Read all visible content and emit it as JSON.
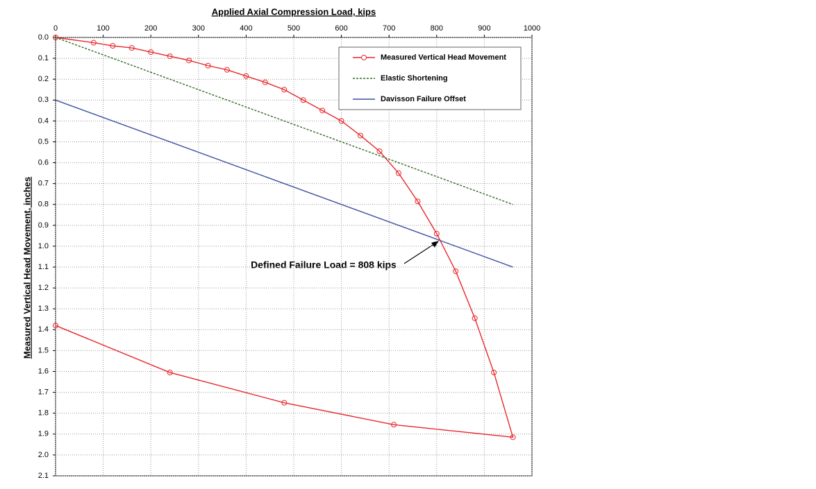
{
  "chart_data": {
    "type": "line",
    "title": "Applied Axial Compression Load, kips",
    "y_label": "Measured Vertical Head Movement, inches",
    "xlim": [
      0,
      1000
    ],
    "xticks": [
      0,
      100,
      200,
      300,
      400,
      500,
      600,
      700,
      800,
      900,
      1000
    ],
    "ylim": [
      0,
      2.1
    ],
    "yticks": [
      {
        "value": 0,
        "label": "0.0"
      },
      0.1,
      0.2,
      0.3,
      0.4,
      0.5,
      0.6,
      0.7,
      0.8,
      0.9,
      {
        "value": 1,
        "label": "1.0"
      },
      1.1,
      1.2,
      1.3,
      1.4,
      1.5,
      1.6,
      1.7,
      1.8,
      1.9,
      {
        "value": 2,
        "label": "2.0"
      },
      2.1
    ],
    "y_inverted": true,
    "x_axis_position": "top",
    "grid": true,
    "legend": "upper right",
    "series": [
      {
        "name": "Measured Vertical Head Movement",
        "color": "#e8262b",
        "markers": true,
        "dash": false,
        "x": [
          0,
          80,
          120,
          160,
          200,
          240,
          280,
          320,
          360,
          400,
          440,
          480,
          520,
          560,
          600,
          640,
          680,
          720,
          760,
          800,
          840,
          880,
          920,
          960,
          710,
          480,
          240,
          0
        ],
        "values": [
          0,
          0.025,
          0.04,
          0.05,
          0.07,
          0.09,
          0.11,
          0.135,
          0.155,
          0.185,
          0.215,
          0.25,
          0.3,
          0.35,
          0.4,
          0.47,
          0.545,
          0.65,
          0.785,
          0.94,
          1.12,
          1.345,
          1.605,
          1.915,
          1.855,
          1.75,
          1.605,
          1.38
        ]
      },
      {
        "name": "Elastic Shortening",
        "color": "#2d6a1f",
        "markers": false,
        "dash": true,
        "x": [
          0,
          960
        ],
        "values": [
          0,
          0.8
        ]
      },
      {
        "name": "Davisson Failure Offset",
        "color": "#3a4fa0",
        "markers": false,
        "dash": false,
        "x": [
          0,
          960
        ],
        "values": [
          0.3,
          1.1
        ]
      }
    ],
    "annotation": "Defined Failure Load = 808 kips"
  }
}
